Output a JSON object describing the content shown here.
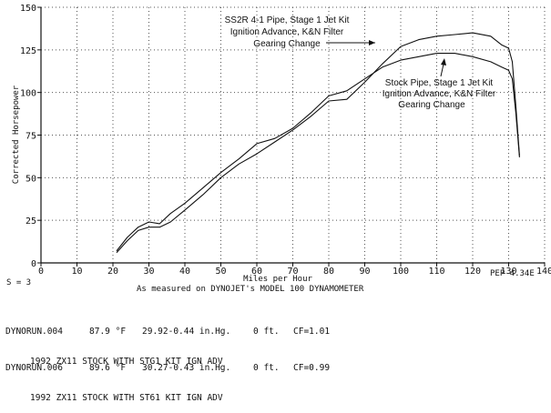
{
  "chart_data": {
    "type": "line",
    "title": "",
    "xlabel": "Miles per Hour",
    "ylabel": "Corrected Horsepower",
    "xlim": [
      0,
      140
    ],
    "ylim": [
      0,
      150
    ],
    "x_ticks": [
      "0",
      "10",
      "20",
      "30",
      "40",
      "50",
      "60",
      "70",
      "80",
      "90",
      "100",
      "110",
      "120",
      "130",
      "140"
    ],
    "y_ticks": [
      "0",
      "25",
      "50",
      "75",
      "100",
      "125",
      "150"
    ],
    "grid": true,
    "series": [
      {
        "name": "SS2R 4-1 Pipe, Stage 1 Jet Kit Ignition Advance, K&N Filter Gearing Change",
        "x": [
          21,
          24,
          27,
          30,
          33,
          36,
          40,
          45,
          50,
          55,
          60,
          65,
          70,
          75,
          80,
          85,
          90,
          95,
          100,
          105,
          110,
          115,
          120,
          125,
          128,
          130,
          131,
          132,
          133
        ],
        "y": [
          6,
          13,
          19,
          21,
          21,
          24,
          31,
          40,
          50,
          58,
          64,
          71,
          78,
          86,
          95,
          96,
          106,
          117,
          127,
          131,
          133,
          134,
          135,
          133,
          128,
          126,
          118,
          92,
          63
        ]
      },
      {
        "name": "Stock Pipe, Stage 1 Jet Kit Ignition Advance, K&N Filter Gearing Change",
        "x": [
          21,
          24,
          27,
          30,
          33,
          36,
          40,
          45,
          50,
          55,
          60,
          65,
          70,
          75,
          80,
          85,
          90,
          95,
          100,
          105,
          110,
          115,
          120,
          125,
          128,
          130,
          131,
          132,
          133
        ],
        "y": [
          7,
          15,
          21,
          24,
          23,
          29,
          35,
          44,
          53,
          61,
          70,
          73,
          79,
          88,
          98,
          101,
          108,
          115,
          119,
          121,
          123,
          123,
          121,
          118,
          115,
          113,
          108,
          88,
          62
        ]
      }
    ],
    "annotations": [
      {
        "lines": [
          "SS2R 4-1 Pipe, Stage 1 Jet Kit",
          "Ignition Advance, K&N Filter",
          "Gearing Change"
        ]
      },
      {
        "lines": [
          "Stock Pipe, Stage 1 Jet Kit",
          "Ignition Advance, K&N Filter",
          "Gearing Change"
        ]
      }
    ]
  },
  "footer": {
    "smoothing": "S = 3",
    "pep": "PEP 4.34E",
    "caption": "As measured on DYNOJET's MODEL 100 DYNAMOMETER"
  },
  "runs": [
    {
      "file": "DYNORUN.004",
      "temp": "87.9 °F",
      "baro": "29.92-0.44 in.Hg.",
      "alt": "0 ft.",
      "cf": "CF=1.01",
      "desc": "1992 ZX11 STOCK WITH STG1 KIT IGN ADV"
    },
    {
      "file": "DYNORUN.006",
      "temp": "89.6 °F",
      "baro": "30.27-0.43 in.Hg.",
      "alt": "0 ft.",
      "cf": "CF=0.99",
      "desc": "1992 ZX11 STOCK WITH ST61 KIT IGN ADV"
    }
  ]
}
